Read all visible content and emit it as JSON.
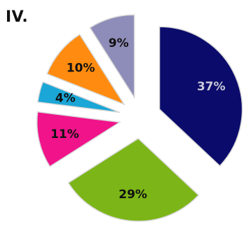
{
  "panel_label": "IV.",
  "chart_data": {
    "type": "pie",
    "exploded": true,
    "slices": [
      {
        "label": "37%",
        "value": 37,
        "color": "#0b0b6b",
        "text_color": "#c8c8d8"
      },
      {
        "label": "29%",
        "value": 29,
        "color": "#7cb518",
        "text_color": "#111111"
      },
      {
        "label": "11%",
        "value": 11,
        "color": "#f0138a",
        "text_color": "#111111"
      },
      {
        "label": "4%",
        "value": 4,
        "color": "#1aa6d6",
        "text_color": "#111111"
      },
      {
        "label": "10%",
        "value": 10,
        "color": "#ff8c10",
        "text_color": "#111111"
      },
      {
        "label": "9%",
        "value": 9,
        "color": "#8e8cb8",
        "text_color": "#111111"
      }
    ]
  }
}
